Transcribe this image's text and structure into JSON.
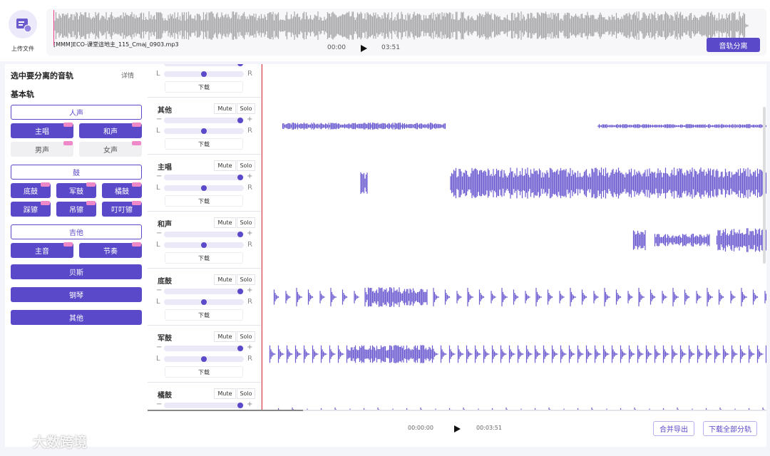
{
  "header": {
    "upload_label": "上传文件",
    "file_name": "[MMM]ECO-课堂這地主_115_Cmaj_0903.mp3",
    "current_time": "00:00",
    "total_time": "03:51",
    "separate_button": "音轨分离"
  },
  "sidebar": {
    "title": "选中要分离的音轨",
    "details": "详情",
    "section": "基本轨",
    "groups": [
      {
        "title": "人声",
        "rows": [
          [
            "主唱",
            "和声"
          ],
          [
            "男声",
            "女声"
          ]
        ]
      },
      {
        "title": "鼓",
        "rows": [
          [
            "底鼓",
            "军鼓",
            "橘鼓"
          ],
          [
            "踩镲",
            "吊镲",
            "叮叮镲"
          ]
        ]
      },
      {
        "title": "吉他",
        "rows": [
          [
            "主音",
            "节奏"
          ]
        ]
      }
    ],
    "singles": [
      "贝斯",
      "钢琴",
      "其他"
    ]
  },
  "tracks": [
    {
      "plus": "+",
      "left": "L",
      "right": "R",
      "download": "下载"
    },
    {
      "name": "其他",
      "mute": "Mute",
      "solo": "Solo",
      "minus": "−",
      "plus": "+",
      "left": "L",
      "right": "R",
      "download": "下载"
    },
    {
      "name": "主唱",
      "mute": "Mute",
      "solo": "Solo",
      "minus": "−",
      "plus": "+",
      "left": "L",
      "right": "R",
      "download": "下载"
    },
    {
      "name": "和声",
      "mute": "Mute",
      "solo": "Solo",
      "minus": "−",
      "plus": "+",
      "left": "L",
      "right": "R",
      "download": "下载"
    },
    {
      "name": "底鼓",
      "mute": "Mute",
      "solo": "Solo",
      "minus": "−",
      "plus": "+",
      "left": "L",
      "right": "R",
      "download": "下载"
    },
    {
      "name": "军鼓",
      "mute": "Mute",
      "solo": "Solo",
      "minus": "−",
      "plus": "+",
      "left": "L",
      "right": "R",
      "download": "下载"
    },
    {
      "name": "橘鼓",
      "mute": "Mute",
      "solo": "Solo",
      "minus": "−",
      "plus": "+"
    }
  ],
  "footer": {
    "current_time": "00:00:00",
    "total_time": "00:03:51",
    "merge_button": "合并导出",
    "download_all_button": "下载全部分轨"
  },
  "watermark": "大数跨境"
}
